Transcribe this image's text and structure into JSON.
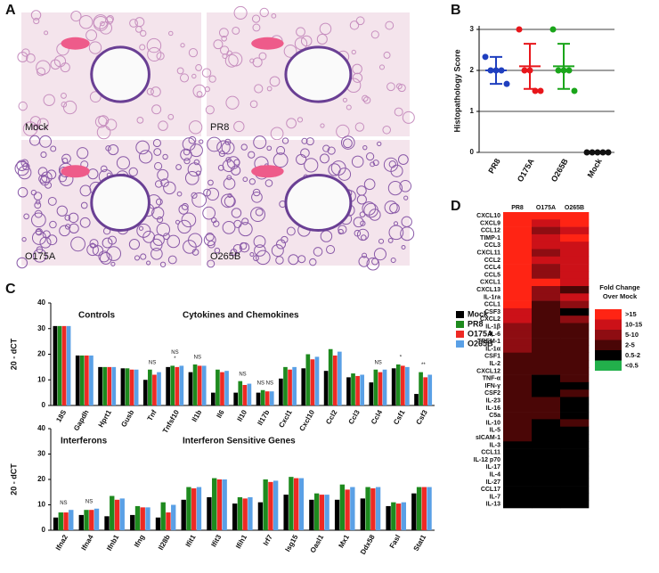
{
  "panel_a": {
    "letter": "A",
    "images": [
      "Mock",
      "PR8",
      "O175A",
      "O265B"
    ]
  },
  "chart_data": [
    {
      "type": "scatter",
      "panel": "B",
      "ylabel": "Histopathology Score",
      "categories": [
        "PR8",
        "O175A",
        "O265B",
        "Mock"
      ],
      "colors": [
        "#1f3fbf",
        "#e8161b",
        "#1aa51a",
        "#111111"
      ],
      "points": [
        [
          2.33,
          2,
          2,
          2,
          1.67
        ],
        [
          3,
          2,
          2,
          1.5,
          1.5
        ],
        [
          3,
          2,
          2,
          2,
          1.5
        ],
        [
          0,
          0,
          0,
          0,
          0
        ]
      ],
      "means": [
        2,
        2.1,
        2.1,
        0
      ],
      "errors": [
        0.33,
        0.55,
        0.55,
        0
      ],
      "ylim": [
        0,
        3
      ],
      "yticks": [
        0,
        1,
        2,
        3
      ],
      "grid": true
    },
    {
      "type": "bar",
      "panel": "C",
      "ylabel": "20 - dCT",
      "titles": [
        "Controls",
        "Cytokines and Chemokines"
      ],
      "categories": [
        "18S",
        "Gapdh",
        "Hprt1",
        "Gusb",
        "Tnf",
        "Tnfsf10",
        "Il1b",
        "Il6",
        "Il10",
        "Il17b",
        "Cxcl1",
        "Cxcl10",
        "Ccl2",
        "Ccl3",
        "Ccl4",
        "Csf1",
        "Csf3"
      ],
      "series": [
        {
          "name": "Mock",
          "color": "#000000",
          "values": [
            31,
            19.5,
            15,
            14.5,
            10,
            15,
            13,
            5,
            5,
            5,
            10.5,
            14.5,
            13.5,
            11,
            9,
            14.5,
            4.5
          ]
        },
        {
          "name": "PR8",
          "color": "#1e8a1e",
          "values": [
            31,
            19.5,
            15,
            14.5,
            14,
            15.5,
            16,
            14,
            9.5,
            6,
            15,
            20,
            22,
            12.5,
            14,
            16,
            13
          ]
        },
        {
          "name": "O175A",
          "color": "#ee2a24",
          "values": [
            31,
            19.5,
            15,
            14,
            12,
            15,
            15.5,
            13,
            8,
            5.5,
            14,
            18,
            19.5,
            11.5,
            13,
            15.5,
            11
          ]
        },
        {
          "name": "O265B",
          "color": "#5aa0e6",
          "values": [
            31,
            19.5,
            15,
            14,
            13,
            15.5,
            15.5,
            13.5,
            8.5,
            5.5,
            15,
            19,
            21,
            12,
            14,
            15,
            12
          ]
        }
      ],
      "annotations": [
        null,
        null,
        null,
        null,
        [
          "NS"
        ],
        [
          "NS",
          "*"
        ],
        [
          "NS"
        ],
        null,
        [
          "NS"
        ],
        [
          "NS NS"
        ],
        null,
        null,
        null,
        null,
        [
          "NS"
        ],
        [
          "*"
        ],
        [
          "**"
        ]
      ],
      "ylim": [
        0,
        40
      ],
      "yticks": [
        0,
        10,
        20,
        30,
        40
      ]
    },
    {
      "type": "bar",
      "ylabel": "20 - dCT",
      "titles": [
        "Interferons",
        "Interferon Sensitive Genes"
      ],
      "categories": [
        "Ifna2",
        "Ifna4",
        "Ifnb1",
        "Ifng",
        "Il28b",
        "Ifit1",
        "Ifit3",
        "Ifih1",
        "Irf7",
        "Isg15",
        "Oasl1",
        "Mx1",
        "Ddx58",
        "Fasl",
        "Stat1"
      ],
      "series": [
        {
          "color": "#000000",
          "values": [
            5,
            6,
            5.5,
            6,
            5,
            12,
            13,
            10.5,
            11,
            14,
            12,
            12,
            12.5,
            9.5,
            14.5
          ]
        },
        {
          "color": "#1e8a1e",
          "values": [
            7,
            8,
            13.5,
            9.5,
            11,
            17,
            20.5,
            13,
            20,
            21,
            14.5,
            18,
            17,
            11,
            17
          ]
        },
        {
          "color": "#ee2a24",
          "values": [
            7,
            8,
            12,
            9,
            7,
            16.5,
            20,
            12.5,
            19,
            20.5,
            14,
            16,
            16.5,
            10.5,
            17
          ]
        },
        {
          "color": "#5aa0e6",
          "values": [
            8,
            8.5,
            12.5,
            9,
            10,
            17,
            20,
            13,
            19.5,
            20.5,
            14,
            17,
            17,
            11,
            17
          ]
        }
      ],
      "annotations": [
        [
          "NS"
        ],
        [
          "NS"
        ],
        null,
        null,
        null,
        null,
        null,
        null,
        null,
        null,
        null,
        null,
        null,
        null,
        null
      ],
      "ylim": [
        0,
        40
      ],
      "yticks": [
        0,
        10,
        20,
        30,
        40
      ]
    },
    {
      "type": "heatmap",
      "panel": "D",
      "columns": [
        "PR8",
        "O175A",
        "O265B"
      ],
      "rows": [
        "CXCL10",
        "CXCL9",
        "CCL12",
        "TIMP-1",
        "CCL3",
        "CXCL11",
        "CCL2",
        "CCL4",
        "CCL5",
        "CXCL1",
        "CXCL13",
        "IL-1ra",
        "CCL1",
        "CSF3",
        "CXCL2",
        "IL-1β",
        "IL-6",
        "TREM-1",
        "IL-1α",
        "CSF1",
        "IL-2",
        "CXCL12",
        "TNF-α",
        "IFN-γ",
        "CSF2",
        "IL-23",
        "IL-16",
        "C5a",
        "IL-10",
        "IL-5",
        "sICAM-1",
        "IL-3",
        "CCL11",
        "IL-12 p70",
        "IL-17",
        "IL-4",
        "IL-27",
        "CCL17",
        "IL-7",
        "IL-13"
      ],
      "values": [
        [
          20,
          20,
          20
        ],
        [
          20,
          12,
          20
        ],
        [
          20,
          7,
          12
        ],
        [
          20,
          12,
          20
        ],
        [
          20,
          12,
          12
        ],
        [
          20,
          7,
          12
        ],
        [
          20,
          12,
          12
        ],
        [
          20,
          7,
          12
        ],
        [
          20,
          7,
          12
        ],
        [
          20,
          20,
          12
        ],
        [
          20,
          7,
          3
        ],
        [
          20,
          7,
          12
        ],
        [
          20,
          3,
          7
        ],
        [
          12,
          3,
          1
        ],
        [
          12,
          3,
          7
        ],
        [
          7,
          3,
          3
        ],
        [
          7,
          3,
          3
        ],
        [
          7,
          3,
          3
        ],
        [
          7,
          3,
          3
        ],
        [
          3,
          3,
          3
        ],
        [
          3,
          3,
          3
        ],
        [
          3,
          3,
          3
        ],
        [
          3,
          1,
          3
        ],
        [
          3,
          1,
          1
        ],
        [
          3,
          1,
          3
        ],
        [
          3,
          3,
          1
        ],
        [
          3,
          3,
          1
        ],
        [
          3,
          3,
          1
        ],
        [
          3,
          1,
          3
        ],
        [
          3,
          1,
          1
        ],
        [
          3,
          1,
          1
        ],
        [
          1,
          1,
          1
        ],
        [
          1,
          1,
          1
        ],
        [
          1,
          1,
          1
        ],
        [
          1,
          1,
          1
        ],
        [
          1,
          1,
          1
        ],
        [
          1,
          1,
          1
        ],
        [
          1,
          1,
          1
        ],
        [
          1,
          1,
          1
        ],
        [
          1,
          1,
          1
        ]
      ],
      "legend_title": [
        "Fold Change",
        "Over Mock"
      ],
      "legend": [
        {
          "label": ">15",
          "color": "#ff2414",
          "min": 15
        },
        {
          "label": "10-15",
          "color": "#cc1118",
          "min": 10
        },
        {
          "label": "5-10",
          "color": "#8e0d12",
          "min": 5
        },
        {
          "label": "2-5",
          "color": "#4a0606",
          "min": 2
        },
        {
          "label": "0.5-2",
          "color": "#000000",
          "min": 0.5
        },
        {
          "label": "<0.5",
          "color": "#22b04b",
          "min": 0
        }
      ]
    }
  ]
}
